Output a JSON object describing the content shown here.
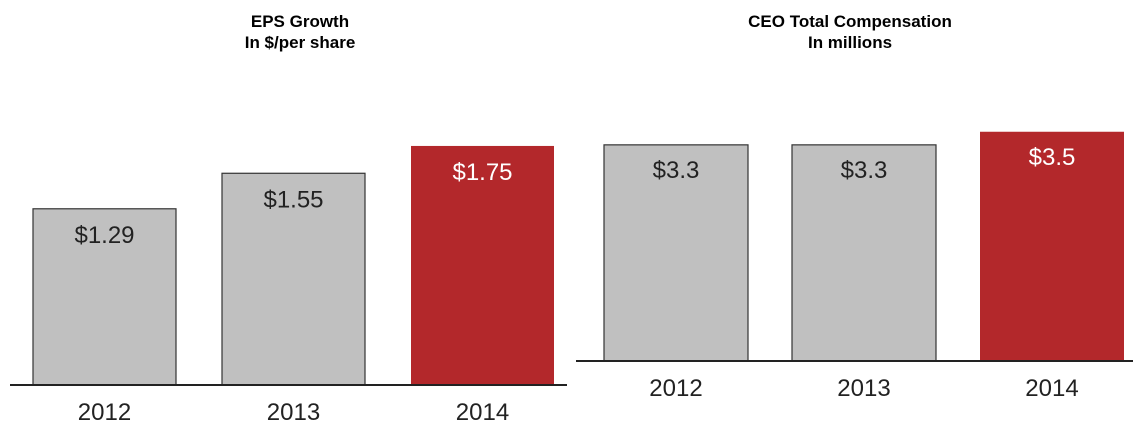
{
  "chart_data": [
    {
      "type": "bar",
      "title": "EPS Growth",
      "subtitle": "In $/per share",
      "categories": [
        "2012",
        "2013",
        "2014"
      ],
      "values": [
        1.29,
        1.55,
        1.75
      ],
      "data_labels": [
        "$1.29",
        "$1.55",
        "$1.75"
      ],
      "colors": [
        "#c0c0c0",
        "#c0c0c0",
        "#b3282b"
      ],
      "label_colors": [
        "#222222",
        "#222222",
        "#ffffff"
      ],
      "grid": false,
      "legend": "none"
    },
    {
      "type": "bar",
      "title": "CEO Total Compensation",
      "subtitle": "In millions",
      "categories": [
        "2012",
        "2013",
        "2014"
      ],
      "values": [
        3.3,
        3.3,
        3.5
      ],
      "data_labels": [
        "$3.3",
        "$3.3",
        "$3.5"
      ],
      "colors": [
        "#c0c0c0",
        "#c0c0c0",
        "#b3282b"
      ],
      "label_colors": [
        "#222222",
        "#222222",
        "#ffffff"
      ],
      "grid": false,
      "legend": "none"
    }
  ]
}
